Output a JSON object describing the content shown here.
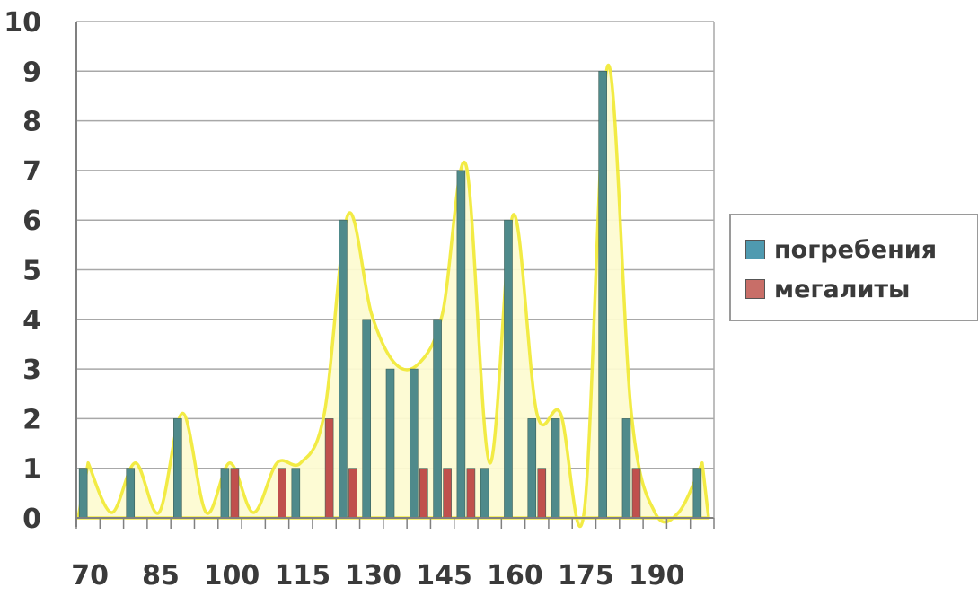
{
  "chart_data": {
    "type": "bar",
    "categories": [
      70,
      75,
      80,
      85,
      90,
      95,
      100,
      105,
      110,
      115,
      120,
      125,
      130,
      135,
      140,
      145,
      150,
      155,
      160,
      165,
      170,
      175,
      180,
      185,
      190,
      195,
      200
    ],
    "x_tick_labels": [
      "70",
      "85",
      "100",
      "115",
      "130",
      "145",
      "160",
      "175",
      "190"
    ],
    "y_tick_labels": [
      "0",
      "1",
      "2",
      "3",
      "4",
      "5",
      "6",
      "7",
      "8",
      "9",
      "10"
    ],
    "ylim": [
      0,
      10
    ],
    "grid": true,
    "legend_position": "right",
    "series": [
      {
        "name": "погребения",
        "color": "#4f8a8b",
        "values": [
          1,
          0,
          1,
          0,
          2,
          0,
          1,
          0,
          0,
          1,
          0,
          6,
          4,
          3,
          3,
          4,
          7,
          1,
          6,
          2,
          2,
          0,
          9,
          2,
          0,
          0,
          1
        ]
      },
      {
        "name": "мегалиты",
        "color": "#c0504d",
        "values": [
          0,
          0,
          0,
          0,
          0,
          0,
          1,
          0,
          1,
          0,
          2,
          1,
          0,
          0,
          1,
          1,
          1,
          0,
          0,
          1,
          0,
          0,
          0,
          1,
          0,
          0,
          0
        ]
      }
    ],
    "annotation": {
      "type": "envelope-outline",
      "stroke_color": "#f2ea3a",
      "fill_color": "#fdfbd2"
    },
    "title": "",
    "xlabel": "",
    "ylabel": ""
  }
}
